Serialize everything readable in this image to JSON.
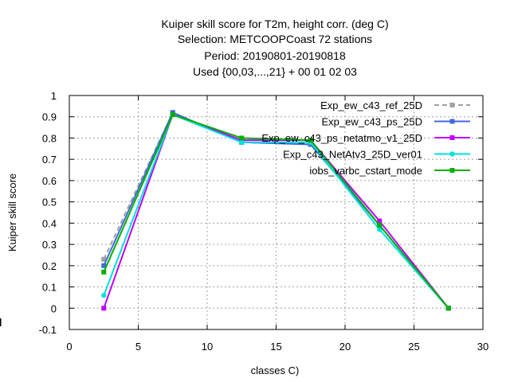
{
  "chart_data": {
    "type": "line",
    "title_lines": [
      "Kuiper skill score  for T2m, height corr. (deg C)",
      "Selection: METCOOPCoast     72 stations",
      "Period: 20190801-20190818",
      "Used {00,03,...,21} + 00 01 02 03"
    ],
    "xlabel": "classes C)",
    "ylabel": "Kuiper skill score",
    "xlim": [
      0,
      30
    ],
    "ylim": [
      -0.1,
      1
    ],
    "xticks": [
      0,
      5,
      10,
      15,
      20,
      25,
      30
    ],
    "yticks": [
      -0.1,
      0,
      0.1,
      0.2,
      0.3,
      0.4,
      0.5,
      0.6,
      0.7,
      0.8,
      0.9,
      1
    ],
    "xtick_labels": [
      "0",
      "5",
      "10",
      "15",
      "20",
      "25",
      "30"
    ],
    "ytick_labels": [
      "-0.1",
      "0",
      "0.1",
      "0.2",
      "0.3",
      "0.4",
      "0.5",
      "0.6",
      "0.7",
      "0.8",
      "0.9",
      "1"
    ],
    "grid": true,
    "legend_position": "top-right",
    "x": [
      2.5,
      7.5,
      12.5,
      17.5,
      22.5,
      27.5
    ],
    "series": [
      {
        "name": "Exp_ew_c43_ref_25D",
        "color": "#a0a0a0",
        "dashed": true,
        "marker": "square",
        "values": [
          0.23,
          0.92,
          0.78,
          0.77,
          0.39,
          0.0
        ]
      },
      {
        "name": "Exp_ew_c43_ps_25D",
        "color": "#4169e1",
        "dashed": false,
        "marker": "square",
        "values": [
          0.2,
          0.92,
          0.78,
          0.77,
          0.39,
          0.0
        ]
      },
      {
        "name": "Exp_ew_c43_ps_netatmo_v1_25D",
        "color": "#c000ff",
        "dashed": false,
        "marker": "square",
        "values": [
          0.0,
          0.91,
          0.79,
          0.79,
          0.41,
          0.0
        ]
      },
      {
        "name": "Exp_c43_NetAtv3_25D_ver01",
        "color": "#00e0e0",
        "dashed": false,
        "marker": "circle",
        "values": [
          0.06,
          0.91,
          0.78,
          0.78,
          0.37,
          0.0
        ]
      },
      {
        "name": "iobs_varbc_cstart_mode",
        "color": "#00b000",
        "dashed": false,
        "marker": "square",
        "values": [
          0.17,
          0.91,
          0.8,
          0.79,
          0.39,
          0.0
        ]
      }
    ]
  }
}
